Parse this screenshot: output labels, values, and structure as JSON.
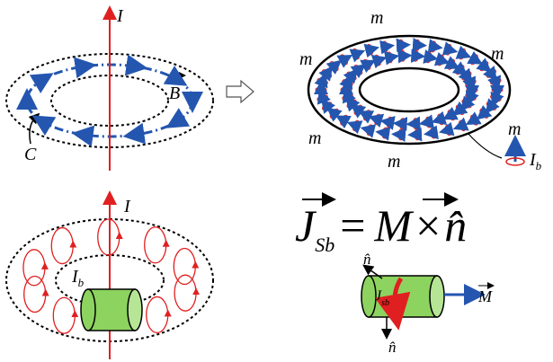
{
  "top_left": {
    "current_label": "I",
    "field_label": "B",
    "loop_label": "C"
  },
  "top_right": {
    "moment_labels": [
      "m",
      "m",
      "m",
      "m",
      "m"
    ],
    "legend_moment": "m",
    "bound_current": {
      "symbol": "I",
      "subscript": "b"
    }
  },
  "bottom_left": {
    "current_label": "I",
    "bound_current": {
      "symbol": "I",
      "subscript": "b"
    }
  },
  "bottom_right": {
    "equation": {
      "current": "J",
      "current_subscript": "Sb",
      "equals": "=",
      "magnetization": "M",
      "times": "×",
      "normal": "n̂"
    },
    "normal_top": "n̂",
    "surface_current": {
      "symbol": "J",
      "subscript": "sb"
    },
    "magnetization": "M",
    "normal_bottom": "n̂"
  }
}
